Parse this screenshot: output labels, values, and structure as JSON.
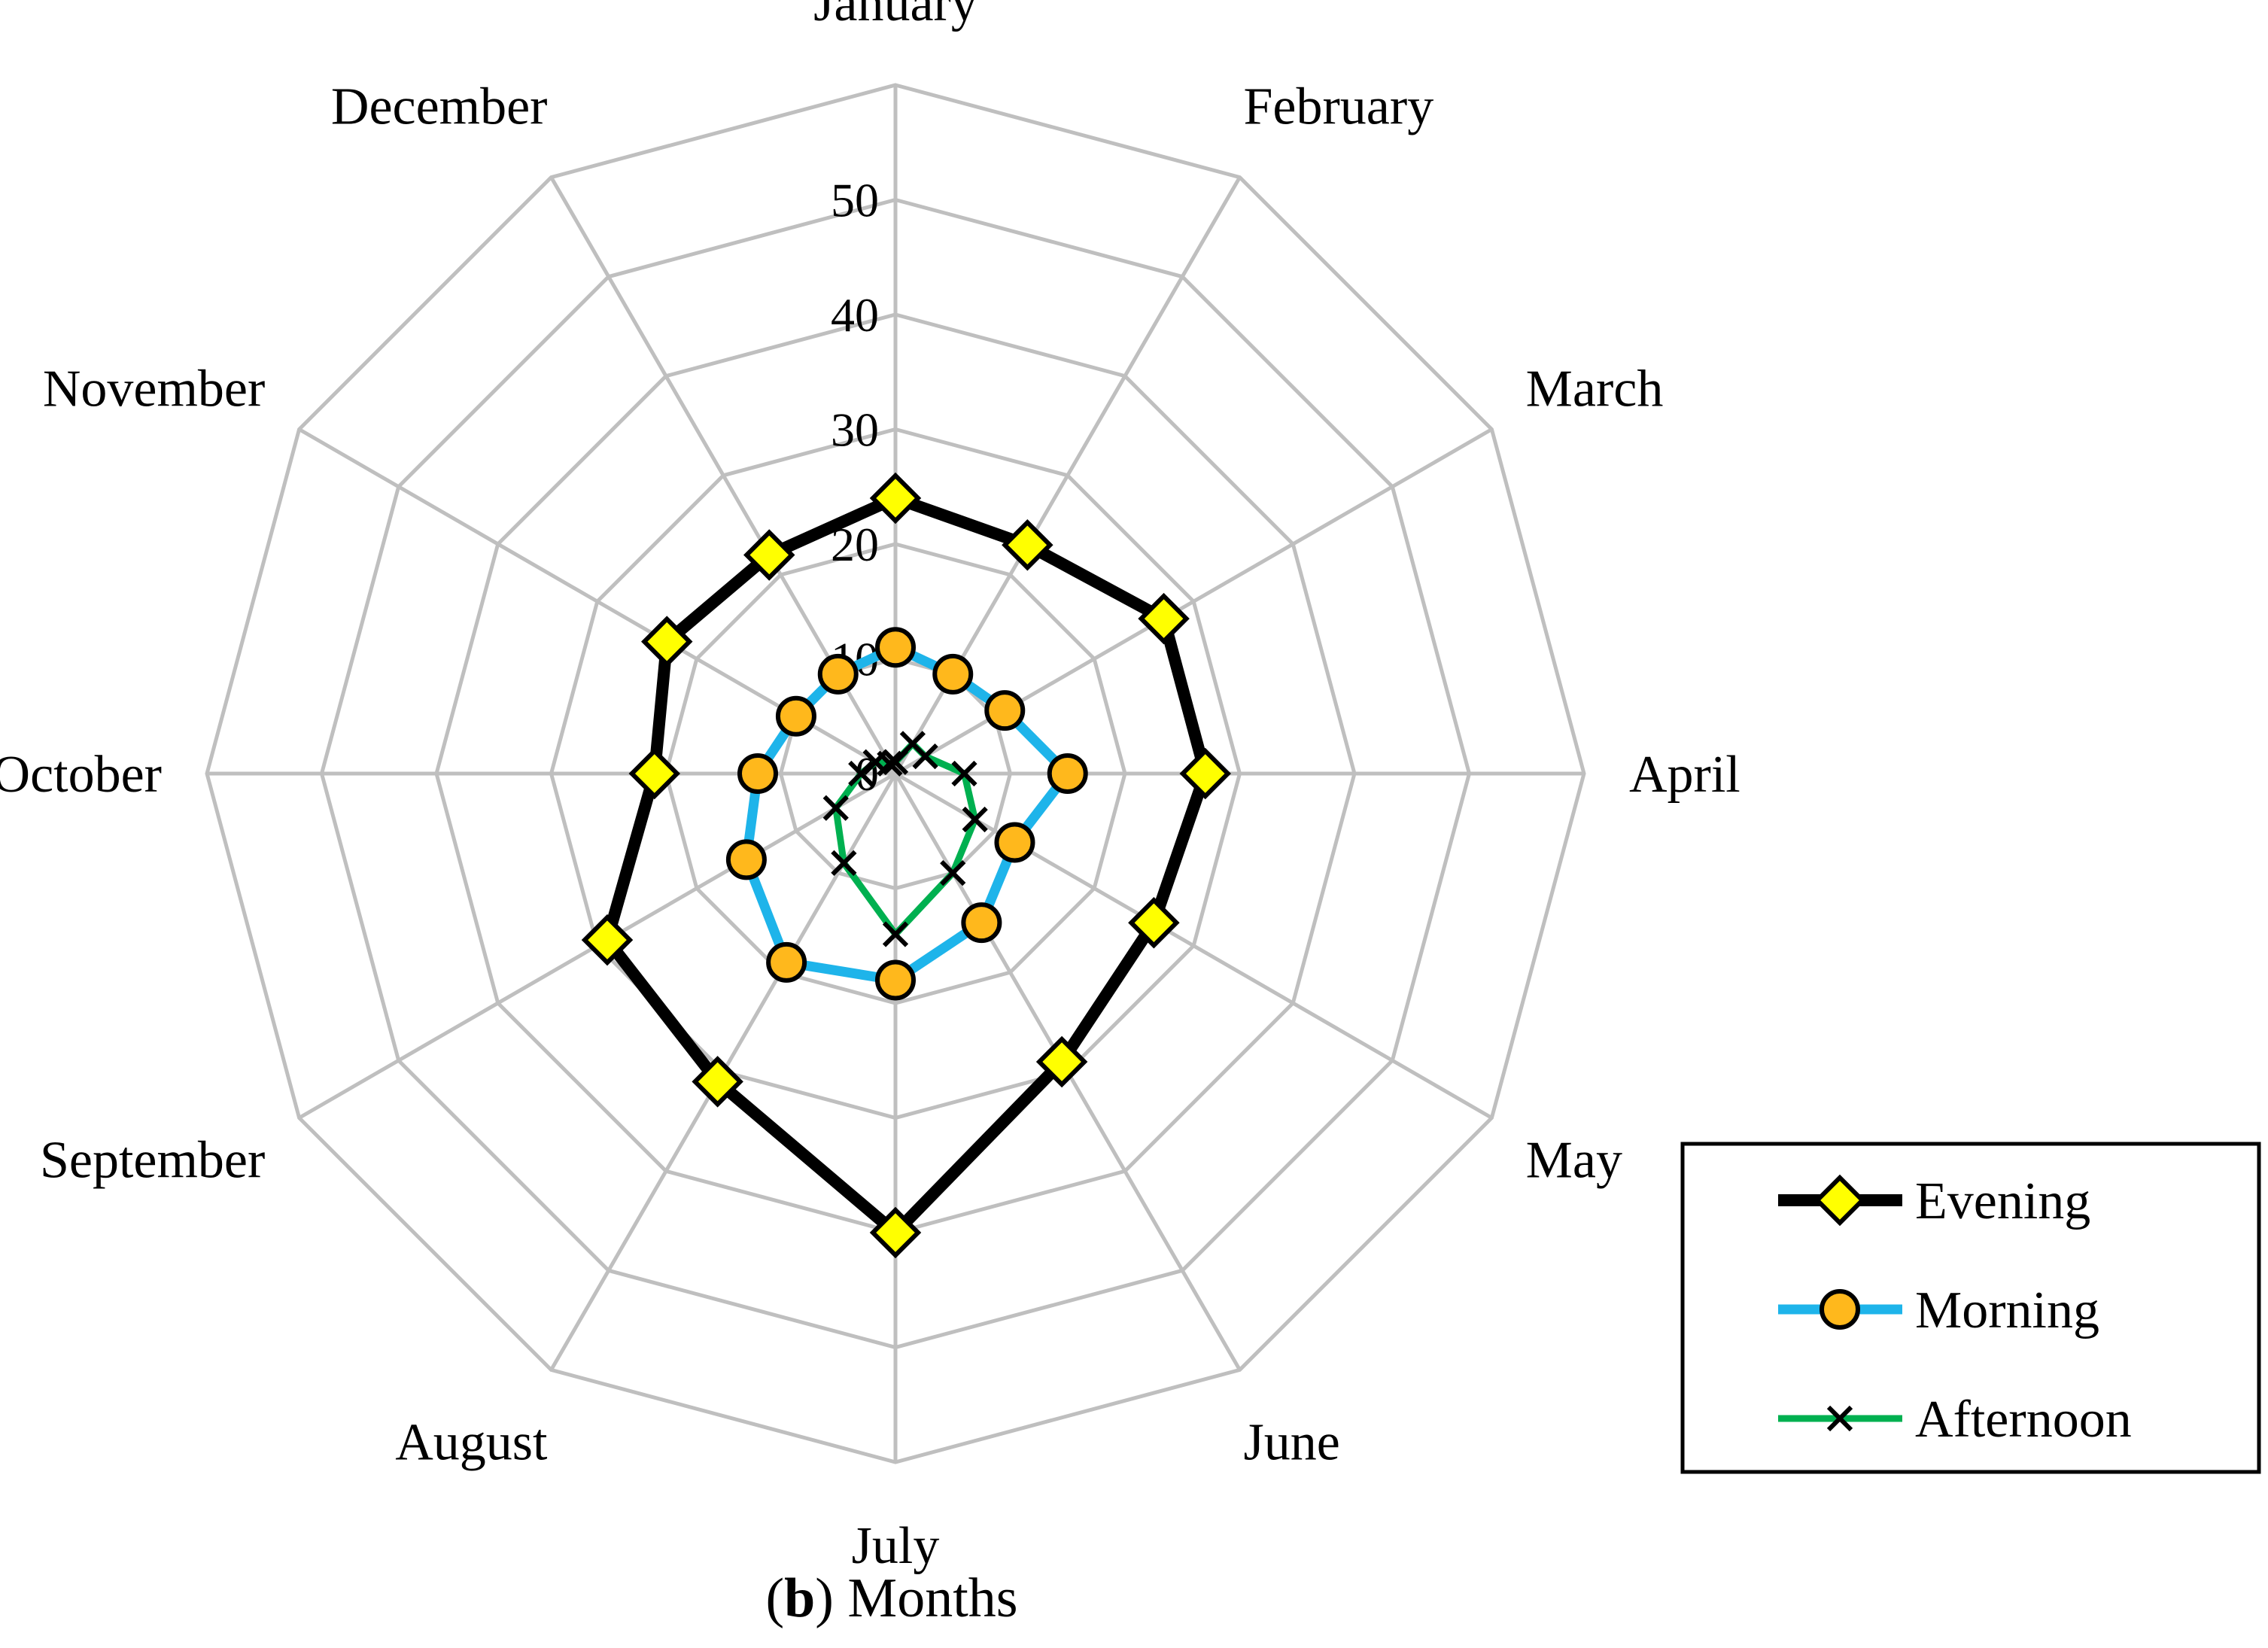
{
  "chart_data": {
    "type": "radar",
    "categories": [
      "January",
      "February",
      "March",
      "April",
      "May",
      "June",
      "July",
      "August",
      "September",
      "October",
      "November",
      "December"
    ],
    "ticks": [
      0,
      10,
      20,
      30,
      40,
      50
    ],
    "ylim": [
      0,
      60
    ],
    "grid": true,
    "legend_position": "bottom-right",
    "series": [
      {
        "name": "Evening",
        "values": [
          24,
          23,
          27,
          27,
          26,
          29,
          40,
          31,
          29,
          21,
          23,
          22
        ],
        "line_color": "#000000",
        "marker": "diamond",
        "marker_color": "#FFFF00"
      },
      {
        "name": "Morning",
        "values": [
          11,
          10,
          11,
          15,
          12,
          15,
          18,
          19,
          15,
          12,
          10,
          10
        ],
        "line_color": "#1EB4EA",
        "marker": "circle",
        "marker_color": "#FFB81C"
      },
      {
        "name": "Afternoon",
        "values": [
          1,
          3,
          3,
          6,
          8,
          10,
          14,
          9,
          6,
          3,
          2,
          1
        ],
        "line_color": "#00B050",
        "marker": "x",
        "marker_color": "#000000"
      }
    ]
  },
  "caption": {
    "letter": "b",
    "open": "(",
    "close": ")",
    "text": " Months"
  }
}
